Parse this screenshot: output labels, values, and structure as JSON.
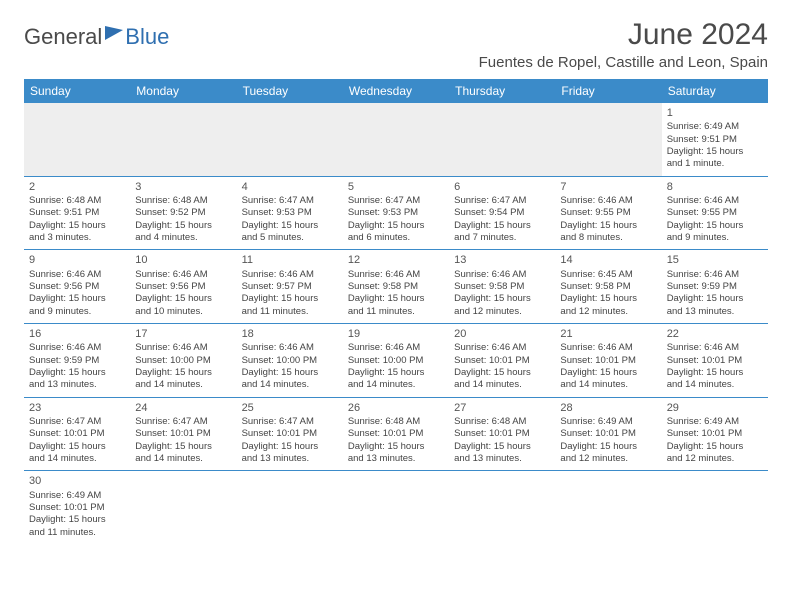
{
  "logo": {
    "general": "General",
    "blue": "Blue"
  },
  "title": "June 2024",
  "location": "Fuentes de Ropel, Castille and Leon, Spain",
  "header_bg": "#3b8bc9",
  "days": [
    "Sunday",
    "Monday",
    "Tuesday",
    "Wednesday",
    "Thursday",
    "Friday",
    "Saturday"
  ],
  "weeks": [
    [
      null,
      null,
      null,
      null,
      null,
      null,
      {
        "n": "1",
        "sr": "Sunrise: 6:49 AM",
        "ss": "Sunset: 9:51 PM",
        "d1": "Daylight: 15 hours",
        "d2": "and 1 minute."
      }
    ],
    [
      {
        "n": "2",
        "sr": "Sunrise: 6:48 AM",
        "ss": "Sunset: 9:51 PM",
        "d1": "Daylight: 15 hours",
        "d2": "and 3 minutes."
      },
      {
        "n": "3",
        "sr": "Sunrise: 6:48 AM",
        "ss": "Sunset: 9:52 PM",
        "d1": "Daylight: 15 hours",
        "d2": "and 4 minutes."
      },
      {
        "n": "4",
        "sr": "Sunrise: 6:47 AM",
        "ss": "Sunset: 9:53 PM",
        "d1": "Daylight: 15 hours",
        "d2": "and 5 minutes."
      },
      {
        "n": "5",
        "sr": "Sunrise: 6:47 AM",
        "ss": "Sunset: 9:53 PM",
        "d1": "Daylight: 15 hours",
        "d2": "and 6 minutes."
      },
      {
        "n": "6",
        "sr": "Sunrise: 6:47 AM",
        "ss": "Sunset: 9:54 PM",
        "d1": "Daylight: 15 hours",
        "d2": "and 7 minutes."
      },
      {
        "n": "7",
        "sr": "Sunrise: 6:46 AM",
        "ss": "Sunset: 9:55 PM",
        "d1": "Daylight: 15 hours",
        "d2": "and 8 minutes."
      },
      {
        "n": "8",
        "sr": "Sunrise: 6:46 AM",
        "ss": "Sunset: 9:55 PM",
        "d1": "Daylight: 15 hours",
        "d2": "and 9 minutes."
      }
    ],
    [
      {
        "n": "9",
        "sr": "Sunrise: 6:46 AM",
        "ss": "Sunset: 9:56 PM",
        "d1": "Daylight: 15 hours",
        "d2": "and 9 minutes."
      },
      {
        "n": "10",
        "sr": "Sunrise: 6:46 AM",
        "ss": "Sunset: 9:56 PM",
        "d1": "Daylight: 15 hours",
        "d2": "and 10 minutes."
      },
      {
        "n": "11",
        "sr": "Sunrise: 6:46 AM",
        "ss": "Sunset: 9:57 PM",
        "d1": "Daylight: 15 hours",
        "d2": "and 11 minutes."
      },
      {
        "n": "12",
        "sr": "Sunrise: 6:46 AM",
        "ss": "Sunset: 9:58 PM",
        "d1": "Daylight: 15 hours",
        "d2": "and 11 minutes."
      },
      {
        "n": "13",
        "sr": "Sunrise: 6:46 AM",
        "ss": "Sunset: 9:58 PM",
        "d1": "Daylight: 15 hours",
        "d2": "and 12 minutes."
      },
      {
        "n": "14",
        "sr": "Sunrise: 6:45 AM",
        "ss": "Sunset: 9:58 PM",
        "d1": "Daylight: 15 hours",
        "d2": "and 12 minutes."
      },
      {
        "n": "15",
        "sr": "Sunrise: 6:46 AM",
        "ss": "Sunset: 9:59 PM",
        "d1": "Daylight: 15 hours",
        "d2": "and 13 minutes."
      }
    ],
    [
      {
        "n": "16",
        "sr": "Sunrise: 6:46 AM",
        "ss": "Sunset: 9:59 PM",
        "d1": "Daylight: 15 hours",
        "d2": "and 13 minutes."
      },
      {
        "n": "17",
        "sr": "Sunrise: 6:46 AM",
        "ss": "Sunset: 10:00 PM",
        "d1": "Daylight: 15 hours",
        "d2": "and 14 minutes."
      },
      {
        "n": "18",
        "sr": "Sunrise: 6:46 AM",
        "ss": "Sunset: 10:00 PM",
        "d1": "Daylight: 15 hours",
        "d2": "and 14 minutes."
      },
      {
        "n": "19",
        "sr": "Sunrise: 6:46 AM",
        "ss": "Sunset: 10:00 PM",
        "d1": "Daylight: 15 hours",
        "d2": "and 14 minutes."
      },
      {
        "n": "20",
        "sr": "Sunrise: 6:46 AM",
        "ss": "Sunset: 10:01 PM",
        "d1": "Daylight: 15 hours",
        "d2": "and 14 minutes."
      },
      {
        "n": "21",
        "sr": "Sunrise: 6:46 AM",
        "ss": "Sunset: 10:01 PM",
        "d1": "Daylight: 15 hours",
        "d2": "and 14 minutes."
      },
      {
        "n": "22",
        "sr": "Sunrise: 6:46 AM",
        "ss": "Sunset: 10:01 PM",
        "d1": "Daylight: 15 hours",
        "d2": "and 14 minutes."
      }
    ],
    [
      {
        "n": "23",
        "sr": "Sunrise: 6:47 AM",
        "ss": "Sunset: 10:01 PM",
        "d1": "Daylight: 15 hours",
        "d2": "and 14 minutes."
      },
      {
        "n": "24",
        "sr": "Sunrise: 6:47 AM",
        "ss": "Sunset: 10:01 PM",
        "d1": "Daylight: 15 hours",
        "d2": "and 14 minutes."
      },
      {
        "n": "25",
        "sr": "Sunrise: 6:47 AM",
        "ss": "Sunset: 10:01 PM",
        "d1": "Daylight: 15 hours",
        "d2": "and 13 minutes."
      },
      {
        "n": "26",
        "sr": "Sunrise: 6:48 AM",
        "ss": "Sunset: 10:01 PM",
        "d1": "Daylight: 15 hours",
        "d2": "and 13 minutes."
      },
      {
        "n": "27",
        "sr": "Sunrise: 6:48 AM",
        "ss": "Sunset: 10:01 PM",
        "d1": "Daylight: 15 hours",
        "d2": "and 13 minutes."
      },
      {
        "n": "28",
        "sr": "Sunrise: 6:49 AM",
        "ss": "Sunset: 10:01 PM",
        "d1": "Daylight: 15 hours",
        "d2": "and 12 minutes."
      },
      {
        "n": "29",
        "sr": "Sunrise: 6:49 AM",
        "ss": "Sunset: 10:01 PM",
        "d1": "Daylight: 15 hours",
        "d2": "and 12 minutes."
      }
    ],
    [
      {
        "n": "30",
        "sr": "Sunrise: 6:49 AM",
        "ss": "Sunset: 10:01 PM",
        "d1": "Daylight: 15 hours",
        "d2": "and 11 minutes."
      },
      null,
      null,
      null,
      null,
      null,
      null
    ]
  ]
}
